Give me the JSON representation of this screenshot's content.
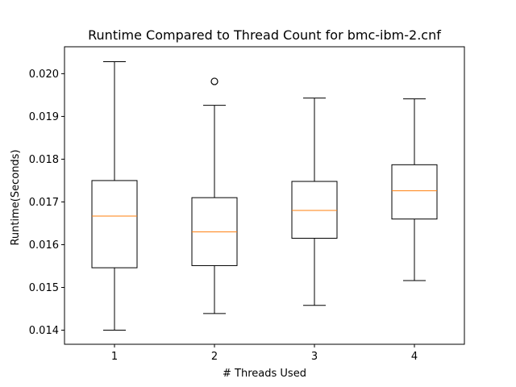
{
  "chart_data": {
    "type": "box",
    "title": "Runtime Compared to Thread Count for bmc-ibm-2.cnf",
    "xlabel": "# Threads Used",
    "ylabel": "Runtime(Seconds)",
    "categories": [
      "1",
      "2",
      "3",
      "4"
    ],
    "ylim": [
      0.01367,
      0.02063
    ],
    "yticks": [
      "0.014",
      "0.015",
      "0.016",
      "0.017",
      "0.018",
      "0.019",
      "0.020"
    ],
    "ytick_values": [
      0.014,
      0.015,
      0.016,
      0.017,
      0.018,
      0.019,
      0.02
    ],
    "boxes": [
      {
        "name": "1",
        "whisker_low": 0.014,
        "q1": 0.01546,
        "median": 0.01667,
        "q3": 0.0175,
        "whisker_high": 0.02028,
        "outliers": []
      },
      {
        "name": "2",
        "whisker_low": 0.01439,
        "q1": 0.01551,
        "median": 0.0163,
        "q3": 0.0171,
        "whisker_high": 0.01926,
        "outliers": [
          0.01982
        ]
      },
      {
        "name": "3",
        "whisker_low": 0.01458,
        "q1": 0.01615,
        "median": 0.0168,
        "q3": 0.01748,
        "whisker_high": 0.01943,
        "outliers": []
      },
      {
        "name": "4",
        "whisker_low": 0.01516,
        "q1": 0.0166,
        "median": 0.01726,
        "q3": 0.01787,
        "whisker_high": 0.01941,
        "outliers": []
      }
    ],
    "grid": false,
    "colors": {
      "box": "#000000",
      "median": "#ff7f0e",
      "background": "#ffffff"
    }
  }
}
